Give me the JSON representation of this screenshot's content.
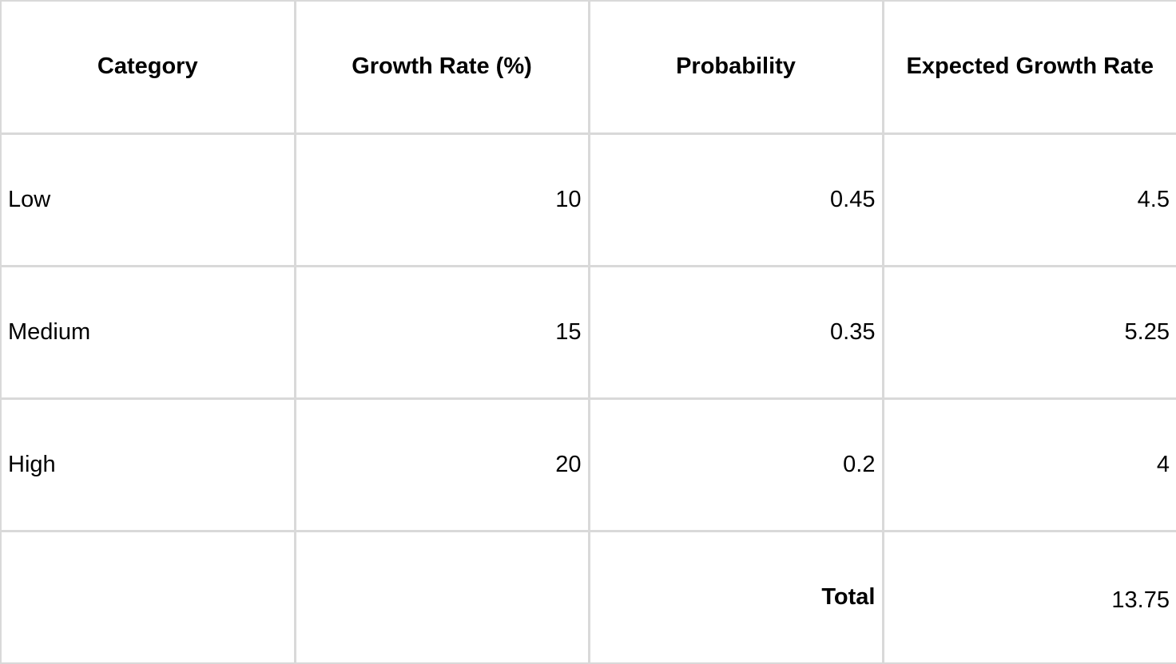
{
  "table": {
    "headers": [
      "Category",
      "Growth Rate (%)",
      "Probability",
      "Expected Growth Rate"
    ],
    "rows": [
      [
        "Low",
        "10",
        "0.45",
        "4.5"
      ],
      [
        "Medium",
        "15",
        "0.35",
        "5.25"
      ],
      [
        "High",
        "20",
        "0.2",
        "4"
      ]
    ],
    "total": {
      "label": "Total",
      "value": "13.75"
    }
  },
  "colors": {
    "grid_line": "#d9d9d9",
    "text": "#000000",
    "background": "#ffffff"
  }
}
